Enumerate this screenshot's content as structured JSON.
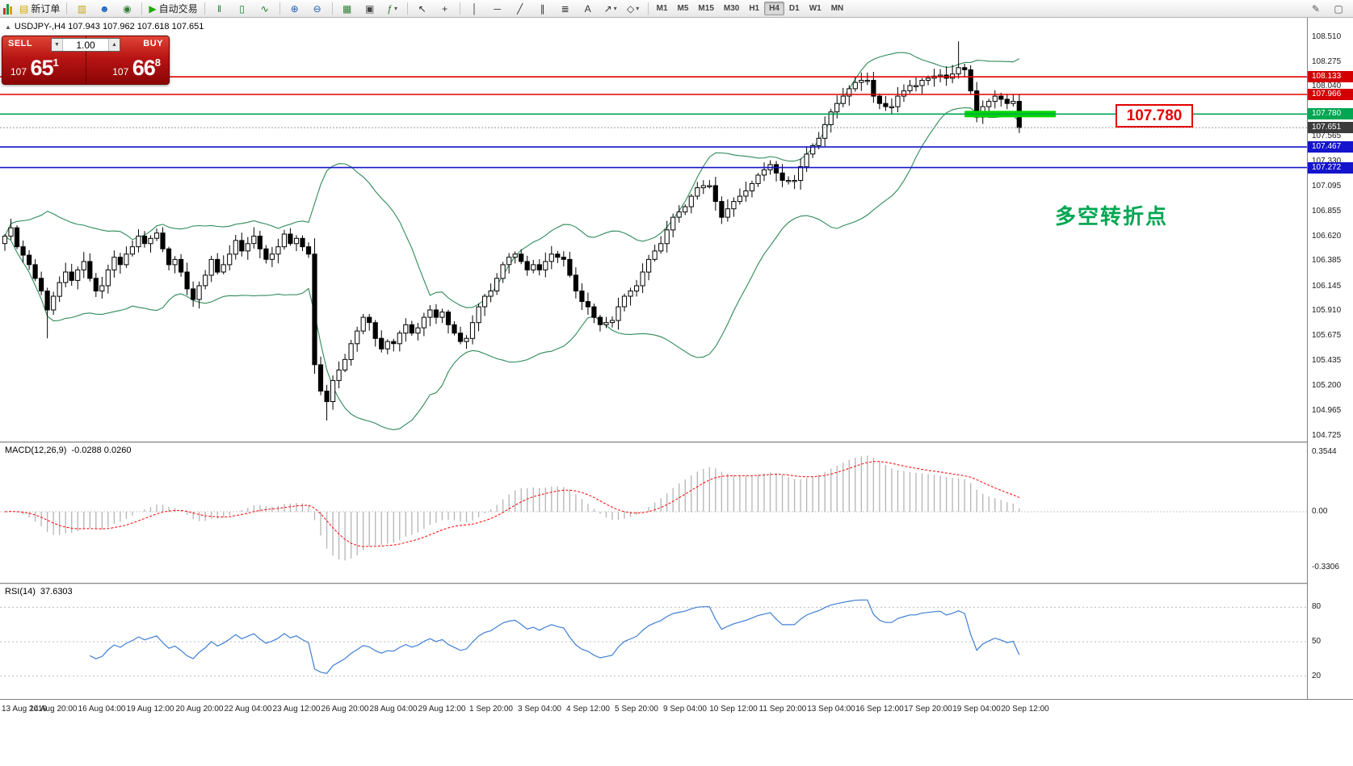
{
  "icons": {
    "collapse": "▲",
    "dropdown": "▾",
    "spin_up": "▲",
    "spin_down": "▼"
  },
  "toolbar": {
    "groups": [
      {
        "items": [
          {
            "name": "new-order-button",
            "glyph": "▤",
            "color": "#d9a700",
            "label": "新订单"
          }
        ]
      },
      {
        "items": [
          {
            "name": "profiles-button",
            "glyph": "▥",
            "color": "#c8a415"
          },
          {
            "name": "community-button",
            "glyph": "☻",
            "color": "#1565c0"
          },
          {
            "name": "market-button",
            "glyph": "◉",
            "color": "#2e7d32"
          }
        ]
      },
      {
        "items": [
          {
            "name": "autotrading-button",
            "glyph": "▶",
            "color": "#1faa00",
            "label": "自动交易"
          }
        ]
      },
      {
        "items": [
          {
            "name": "bar-chart-button",
            "glyph": "‖",
            "color": "#1a7a2a"
          },
          {
            "name": "candlestick-chart-button",
            "glyph": "▯",
            "color": "#1a7a2a"
          },
          {
            "name": "line-chart-button",
            "glyph": "∿",
            "color": "#1a7a2a"
          }
        ]
      },
      {
        "items": [
          {
            "name": "zoom-in-button",
            "glyph": "⊕",
            "color": "#1a5fb4"
          },
          {
            "name": "zoom-out-button",
            "glyph": "⊖",
            "color": "#1a5fb4"
          }
        ]
      },
      {
        "items": [
          {
            "name": "grid-button",
            "glyph": "▦",
            "color": "#2e7d32"
          },
          {
            "name": "tile-windows-button",
            "glyph": "▣",
            "color": "#444444"
          },
          {
            "name": "indicators-button",
            "glyph": "ƒ",
            "color": "#2e7d32",
            "dropdown": true
          }
        ]
      },
      {
        "items": [
          {
            "name": "cursor-button",
            "glyph": "↖",
            "color": "#333333"
          },
          {
            "name": "crosshair-button",
            "glyph": "+",
            "color": "#333333"
          }
        ]
      },
      {
        "items": [
          {
            "name": "vertical-line-button",
            "glyph": "│",
            "color": "#333333"
          },
          {
            "name": "horizontal-line-button",
            "glyph": "─",
            "color": "#333333"
          },
          {
            "name": "trendline-button",
            "glyph": "╱",
            "color": "#333333"
          },
          {
            "name": "channel-button",
            "glyph": "∥",
            "color": "#333333"
          },
          {
            "name": "fibonacci-button",
            "glyph": "≣",
            "color": "#333333"
          },
          {
            "name": "text-button",
            "glyph": "A",
            "color": "#333333"
          },
          {
            "name": "arrows-button",
            "glyph": "↗",
            "color": "#333333",
            "dropdown": true
          },
          {
            "name": "shapes-button",
            "glyph": "◇",
            "color": "#333333",
            "dropdown": true
          }
        ]
      }
    ],
    "timeframes": [
      "M1",
      "M5",
      "M15",
      "M30",
      "H1",
      "H4",
      "D1",
      "W1",
      "MN"
    ],
    "active_timeframe": "H4",
    "right_icons": [
      {
        "name": "pencil-tool-button",
        "glyph": "✎",
        "color": "#555555"
      },
      {
        "name": "window-button",
        "glyph": "▢",
        "color": "#555555"
      }
    ]
  },
  "trade_panel": {
    "sell_label": "SELL",
    "buy_label": "BUY",
    "volume": "1.00",
    "sell_price": {
      "prefix": "107",
      "big": "65",
      "sup": "1"
    },
    "buy_price": {
      "prefix": "107",
      "big": "66",
      "sup": "8"
    }
  },
  "chart": {
    "info_line": "USDJPY-,H4 107.943 107.962 107.618 107.651",
    "annotation_text": "多空转折点",
    "annotation_color": "#00a651",
    "price_label_box": "107.780",
    "price_label_color": "#e30000"
  },
  "chart_data": {
    "type": "candlestick",
    "symbol": "USDJPY-",
    "timeframe": "H4",
    "first_open": 106.55,
    "closes": [
      106.62,
      106.7,
      106.52,
      106.44,
      106.35,
      106.22,
      106.1,
      105.92,
      106.05,
      106.18,
      106.28,
      106.2,
      106.3,
      106.38,
      106.22,
      106.1,
      106.15,
      106.3,
      106.42,
      106.35,
      106.45,
      106.52,
      106.62,
      106.55,
      106.6,
      106.65,
      106.5,
      106.35,
      106.4,
      106.28,
      106.12,
      106.02,
      106.15,
      106.25,
      106.4,
      106.28,
      106.35,
      106.45,
      106.58,
      106.48,
      106.55,
      106.62,
      106.5,
      106.4,
      106.45,
      106.52,
      106.64,
      106.55,
      106.6,
      106.52,
      106.45,
      105.4,
      105.15,
      105.05,
      105.25,
      105.35,
      105.45,
      105.6,
      105.72,
      105.85,
      105.8,
      105.65,
      105.55,
      105.62,
      105.6,
      105.7,
      105.78,
      105.7,
      105.75,
      105.85,
      105.92,
      105.85,
      105.9,
      105.78,
      105.7,
      105.62,
      105.65,
      105.8,
      105.95,
      106.05,
      106.1,
      106.22,
      106.35,
      106.42,
      106.45,
      106.38,
      106.3,
      106.35,
      106.3,
      106.38,
      106.45,
      106.42,
      106.4,
      106.25,
      106.1,
      106.0,
      105.95,
      105.85,
      105.78,
      105.8,
      105.82,
      105.95,
      106.05,
      106.1,
      106.15,
      106.28,
      106.4,
      106.48,
      106.55,
      106.68,
      106.8,
      106.85,
      106.9,
      107.0,
      107.08,
      107.1,
      107.1,
      106.95,
      106.8,
      106.88,
      106.95,
      107.0,
      107.05,
      107.12,
      107.2,
      107.25,
      107.3,
      107.22,
      107.15,
      107.15,
      107.15,
      107.28,
      107.4,
      107.48,
      107.55,
      107.68,
      107.8,
      107.88,
      107.95,
      108.02,
      108.08,
      108.1,
      108.1,
      107.95,
      107.88,
      107.85,
      107.85,
      107.95,
      108.0,
      108.05,
      108.05,
      108.1,
      108.12,
      108.14,
      108.15,
      108.12,
      108.16,
      108.22,
      108.2,
      108.0,
      107.75,
      107.85,
      107.9,
      107.95,
      107.92,
      107.88,
      107.9,
      107.651
    ],
    "wick_overrides": {
      "7": {
        "low": 105.65
      },
      "51": {
        "high": 106.6
      },
      "53": {
        "low": 104.87
      },
      "157": {
        "high": 108.47
      },
      "167": {
        "low": 107.6
      }
    },
    "bollinger": {
      "period": 20,
      "deviation": 2,
      "color": "#2E8B57"
    },
    "levels": [
      {
        "name": "resistance-line-1",
        "price": 108.133,
        "badge": "108.133",
        "line_color": "#e30000",
        "badge_color": "#d40000",
        "style": "solid"
      },
      {
        "name": "resistance-line-2",
        "price": 107.966,
        "badge": "107.966",
        "line_color": "#e30000",
        "badge_color": "#d40000",
        "style": "solid"
      },
      {
        "name": "pivot-line",
        "price": 107.78,
        "badge": "107.780",
        "line_color": "#00a651",
        "badge_color": "#00a651",
        "style": "solid"
      },
      {
        "name": "current-price-line",
        "price": 107.651,
        "badge": "107.651",
        "line_color": "#999999",
        "badge_color": "#3c3c3c",
        "style": "dotted"
      },
      {
        "name": "support-line-1",
        "price": 107.467,
        "badge": "107.467",
        "line_color": "#1414cc",
        "badge_color": "#1414cc",
        "style": "solid"
      },
      {
        "name": "support-line-2",
        "price": 107.272,
        "badge": "107.272",
        "line_color": "#1414cc",
        "badge_color": "#1414cc",
        "style": "solid"
      }
    ],
    "highlight_bar": {
      "price": 107.78,
      "candle_start": 158,
      "candle_end": 173,
      "color": "#00d800"
    },
    "price_axis_labels": [
      "108.510",
      "108.275",
      "108.040",
      "107.565",
      "107.330",
      "107.095",
      "106.855",
      "106.620",
      "106.385",
      "106.145",
      "105.910",
      "105.675",
      "105.435",
      "105.200",
      "104.965",
      "104.725"
    ],
    "macd": {
      "label": "MACD(12,26,9)",
      "value_text": "-0.0288 0.0260",
      "fast": 12,
      "slow": 26,
      "signal": 9,
      "axis": [
        {
          "value": 0.3544,
          "text": "0.3544"
        },
        {
          "value": 0,
          "text": "0.00"
        },
        {
          "value": -0.3306,
          "text": "-0.3306"
        }
      ],
      "histogram_color": "#b4b4b4",
      "signal_color": "#ff0000"
    },
    "rsi": {
      "label": "RSI(14)",
      "value_text": "37.6303",
      "period": 14,
      "levels": [
        80,
        50,
        20
      ],
      "color": "#3f7fd4"
    },
    "time_labels": [
      "13 Aug 2019",
      "14 Aug 20:00",
      "16 Aug 04:00",
      "19 Aug 12:00",
      "20 Aug 20:00",
      "22 Aug 04:00",
      "23 Aug 12:00",
      "26 Aug 20:00",
      "28 Aug 04:00",
      "29 Aug 12:00",
      "1 Sep 20:00",
      "3 Sep 04:00",
      "4 Sep 12:00",
      "5 Sep 20:00",
      "9 Sep 04:00",
      "10 Sep 12:00",
      "11 Sep 20:00",
      "13 Sep 04:00",
      "16 Sep 12:00",
      "17 Sep 20:00",
      "19 Sep 04:00",
      "20 Sep 12:00"
    ]
  }
}
